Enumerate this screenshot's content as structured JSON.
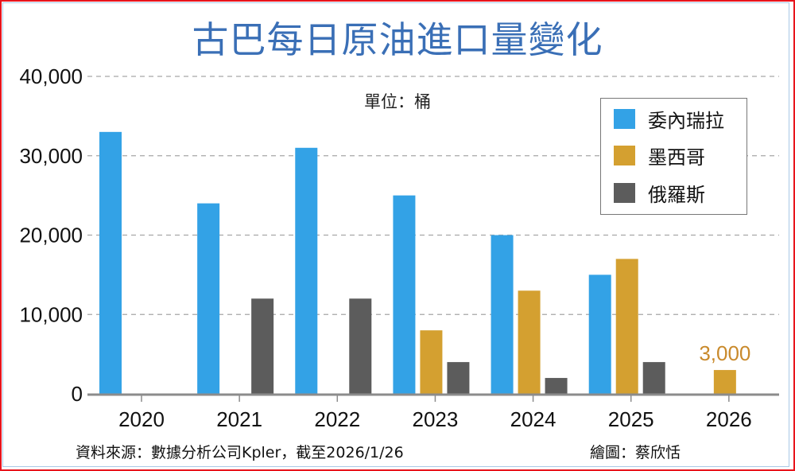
{
  "chart_data": {
    "type": "bar",
    "title": "古巴每日原油進口量變化",
    "unit_label": "單位：桶",
    "xlabel": "",
    "ylabel": "",
    "categories": [
      "2020",
      "2021",
      "2022",
      "2023",
      "2024",
      "2025",
      "2026"
    ],
    "series": [
      {
        "name": "委內瑞拉",
        "color": "#33a2e6",
        "values": [
          33000,
          24000,
          31000,
          25000,
          20000,
          15000,
          null
        ]
      },
      {
        "name": "墨西哥",
        "color": "#d4a030",
        "values": [
          null,
          null,
          null,
          8000,
          13000,
          17000,
          3000
        ]
      },
      {
        "name": "俄羅斯",
        "color": "#5c5c5c",
        "values": [
          null,
          12000,
          12000,
          4000,
          2000,
          4000,
          null
        ]
      }
    ],
    "ylim": [
      0,
      40000
    ],
    "yticks": [
      "0",
      "10,000",
      "20,000",
      "30,000",
      "40,000"
    ],
    "ytick_values": [
      0,
      10000,
      20000,
      30000,
      40000
    ],
    "grid": true,
    "legend_position": "top-right",
    "annotations": [
      {
        "text": "3,000",
        "category": "2026",
        "series": "墨西哥",
        "color": "#c98a2c"
      }
    ]
  },
  "footer": {
    "source": "資料來源：數據分析公司Kpler，截至2026/1/26",
    "credit": "繪圖：蔡欣恬"
  }
}
